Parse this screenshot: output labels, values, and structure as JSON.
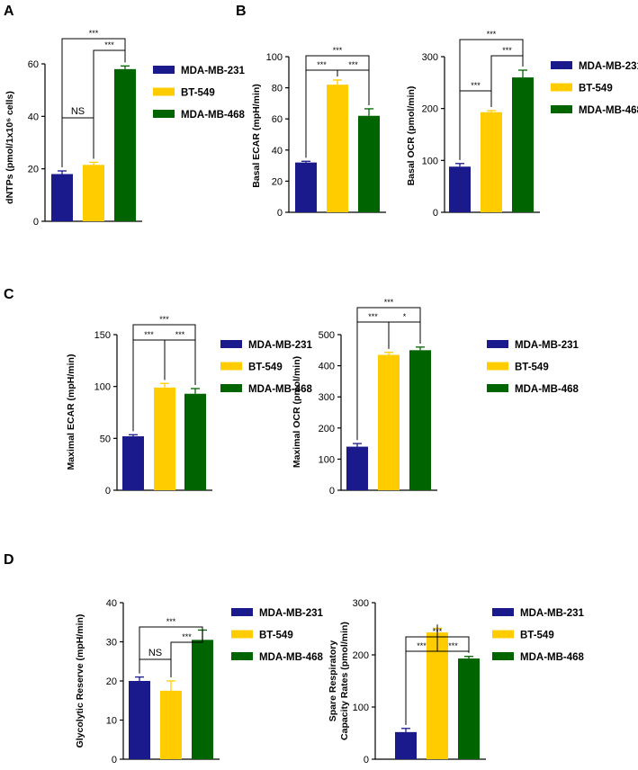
{
  "panel_labels": {
    "A": "A",
    "B": "B",
    "C": "C",
    "D": "D"
  },
  "colors": {
    "MDA-MB-231": "#1a1a8c",
    "BT-549": "#ffcc00",
    "MDA-MB-468": "#006400"
  },
  "legend": [
    "MDA-MB-231",
    "BT-549",
    "MDA-MB-468"
  ],
  "chart_data": [
    {
      "id": "A",
      "type": "bar",
      "categories": [
        "MDA-MB-231",
        "BT-549",
        "MDA-MB-468"
      ],
      "values": [
        18,
        21.5,
        58
      ],
      "errors": [
        1.2,
        1,
        1.2
      ],
      "ylabel": "dNTPs (pmol/1x10⁶ cells)",
      "ylim": [
        0,
        60
      ],
      "yticks": [
        0,
        20,
        40,
        60
      ],
      "comparisons": [
        {
          "from": 0,
          "to": 1,
          "label": "NS"
        },
        {
          "from": 1,
          "to": 2,
          "label": "***"
        },
        {
          "from": 0,
          "to": 2,
          "label": "***"
        }
      ]
    },
    {
      "id": "B1",
      "type": "bar",
      "categories": [
        "MDA-MB-231",
        "BT-549",
        "MDA-MB-468"
      ],
      "values": [
        32,
        82,
        62
      ],
      "errors": [
        0.8,
        3,
        4.5
      ],
      "ylabel": "Basal ECAR (mpH/min)",
      "ylim": [
        0,
        100
      ],
      "yticks": [
        0,
        20,
        40,
        60,
        80,
        100
      ],
      "comparisons": [
        {
          "from": 0,
          "to": 1,
          "label": "***"
        },
        {
          "from": 1,
          "to": 2,
          "label": "***"
        },
        {
          "from": 0,
          "to": 2,
          "label": "***"
        }
      ]
    },
    {
      "id": "B2",
      "type": "bar",
      "categories": [
        "MDA-MB-231",
        "BT-549",
        "MDA-MB-468"
      ],
      "values": [
        88,
        193,
        260
      ],
      "errors": [
        6,
        3,
        14
      ],
      "ylabel": "Basal OCR (pmol/min)",
      "ylim": [
        0,
        300
      ],
      "yticks": [
        0,
        100,
        200,
        300
      ],
      "comparisons": [
        {
          "from": 0,
          "to": 1,
          "label": "***"
        },
        {
          "from": 1,
          "to": 2,
          "label": "***"
        },
        {
          "from": 0,
          "to": 2,
          "label": "***"
        }
      ]
    },
    {
      "id": "C1",
      "type": "bar",
      "categories": [
        "MDA-MB-231",
        "BT-549",
        "MDA-MB-468"
      ],
      "values": [
        52,
        99,
        93
      ],
      "errors": [
        1.5,
        4,
        5
      ],
      "ylabel": "Maximal ECAR (mpH/min)",
      "ylim": [
        0,
        150
      ],
      "yticks": [
        0,
        50,
        100,
        150
      ],
      "comparisons": [
        {
          "from": 0,
          "to": 1,
          "label": "***"
        },
        {
          "from": 1,
          "to": 2,
          "label": "***"
        },
        {
          "from": 0,
          "to": 2,
          "label": "***"
        }
      ]
    },
    {
      "id": "C2",
      "type": "bar",
      "categories": [
        "MDA-MB-231",
        "BT-549",
        "MDA-MB-468"
      ],
      "values": [
        140,
        435,
        450
      ],
      "errors": [
        10,
        8,
        10
      ],
      "ylabel": "Maximal OCR (pmol/min)",
      "ylim": [
        0,
        500
      ],
      "yticks": [
        0,
        100,
        200,
        300,
        400,
        500
      ],
      "comparisons": [
        {
          "from": 0,
          "to": 1,
          "label": "***"
        },
        {
          "from": 1,
          "to": 2,
          "label": "*"
        },
        {
          "from": 0,
          "to": 2,
          "label": "***"
        }
      ]
    },
    {
      "id": "D1",
      "type": "bar",
      "categories": [
        "MDA-MB-231",
        "BT-549",
        "MDA-MB-468"
      ],
      "values": [
        20,
        17.5,
        30.5
      ],
      "errors": [
        1,
        2.5,
        2.5
      ],
      "ylabel": "Glycolytic Reserve (mpH/min)",
      "ylim": [
        0,
        40
      ],
      "yticks": [
        0,
        10,
        20,
        30,
        40
      ],
      "comparisons": [
        {
          "from": 0,
          "to": 1,
          "label": "NS"
        },
        {
          "from": 1,
          "to": 2,
          "label": "***"
        },
        {
          "from": 0,
          "to": 2,
          "label": "***"
        }
      ]
    },
    {
      "id": "D2",
      "type": "bar",
      "categories": [
        "MDA-MB-231",
        "BT-549",
        "MDA-MB-468"
      ],
      "values": [
        52,
        243,
        193
      ],
      "errors": [
        7,
        8,
        4
      ],
      "ylabel": [
        "Spare Respiratory",
        "Capacity Rates (pmol/min)"
      ],
      "ylim": [
        0,
        300
      ],
      "yticks": [
        0,
        100,
        200,
        300
      ],
      "comparisons": [
        {
          "from": 0,
          "to": 1,
          "label": "***"
        },
        {
          "from": 1,
          "to": 2,
          "label": "***"
        },
        {
          "from": 0,
          "to": 2,
          "label": "***"
        }
      ]
    }
  ]
}
